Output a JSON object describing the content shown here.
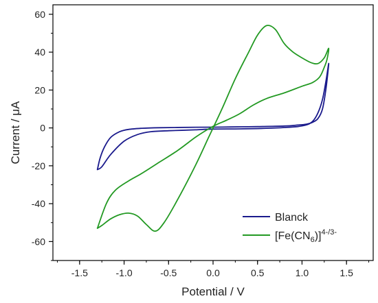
{
  "chart_data": {
    "type": "line",
    "xlabel": "Potential / V",
    "ylabel": "Current / μA",
    "xlim": [
      -1.8,
      1.8
    ],
    "ylim": [
      -70,
      65
    ],
    "xticks": [
      -1.5,
      -1.0,
      -0.5,
      0.0,
      0.5,
      1.0,
      1.5
    ],
    "xtick_labels": [
      "-1.5",
      "-1.0",
      "-0.5",
      "0.0",
      "0.5",
      "1.0",
      "1.5"
    ],
    "yticks": [
      -60,
      -40,
      -20,
      0,
      20,
      40,
      60
    ],
    "ytick_labels": [
      "-60",
      "-40",
      "-20",
      "0",
      "20",
      "40",
      "60"
    ],
    "grid": false,
    "legend_position": "bottom-right",
    "series": [
      {
        "name": "Blanck",
        "color": "#1a1a8c",
        "x": [
          -1.3,
          -1.25,
          -1.15,
          -1.0,
          -0.85,
          -0.7,
          -0.5,
          -0.2,
          0.0,
          0.3,
          0.6,
          0.8,
          0.95,
          1.05,
          1.12,
          1.18,
          1.23,
          1.27,
          1.3,
          1.27,
          1.23,
          1.18,
          1.12,
          1.05,
          0.95,
          0.8,
          0.5,
          0.2,
          0.0,
          -0.3,
          -0.6,
          -0.8,
          -0.95,
          -1.05,
          -1.15,
          -1.22,
          -1.27,
          -1.3
        ],
        "y": [
          -22,
          -20.5,
          -14,
          -7,
          -3.5,
          -2,
          -1.5,
          -1,
          -0.6,
          -0.5,
          -0.2,
          0.2,
          0.7,
          1.6,
          3.5,
          8,
          15,
          25,
          34,
          21,
          10,
          5,
          3,
          2,
          1.5,
          1,
          0.7,
          0.5,
          0.4,
          0.3,
          0.1,
          -0.2,
          -0.8,
          -2,
          -5,
          -10,
          -16,
          -22
        ]
      },
      {
        "name": "[Fe(CN6)]4-/3-",
        "color": "#229922",
        "x": [
          -1.3,
          -1.25,
          -1.15,
          -1.05,
          -0.95,
          -0.85,
          -0.75,
          -0.65,
          -0.55,
          -0.4,
          -0.2,
          -0.05,
          0.1,
          0.25,
          0.4,
          0.5,
          0.6,
          0.7,
          0.8,
          0.9,
          1.0,
          1.1,
          1.18,
          1.25,
          1.3,
          1.28,
          1.25,
          1.2,
          1.12,
          1.0,
          0.8,
          0.6,
          0.45,
          0.3,
          0.15,
          0.05,
          -0.05,
          -0.2,
          -0.4,
          -0.6,
          -0.8,
          -0.95,
          -1.1,
          -1.2,
          -1.3
        ],
        "y": [
          -53,
          -51.5,
          -48,
          -45.8,
          -45,
          -46.5,
          -51,
          -54.5,
          -50,
          -38,
          -20,
          -5,
          10,
          26,
          40,
          49,
          54,
          52,
          44.5,
          40,
          37,
          34.5,
          34,
          37,
          42,
          36,
          32,
          27,
          24,
          22,
          18.5,
          15.5,
          12,
          7.5,
          4,
          2,
          -0.5,
          -5,
          -12,
          -18,
          -24,
          -28,
          -33,
          -40,
          -53
        ]
      }
    ]
  }
}
